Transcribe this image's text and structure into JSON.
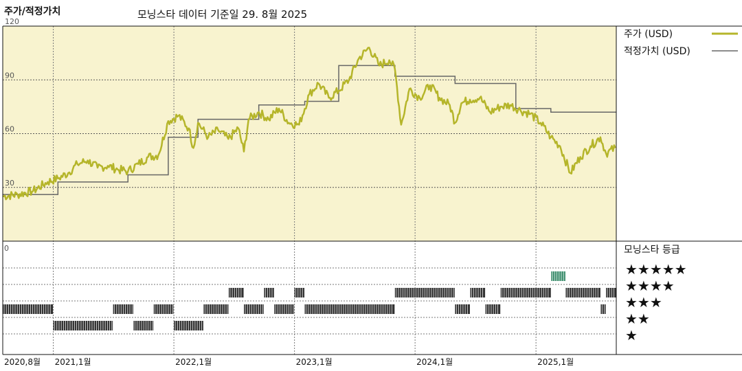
{
  "title": "주가/적정가치",
  "subtitle": "모닝스타 데이터 기준일 29. 8월 2025",
  "colors": {
    "price": "#b5b52a",
    "fair_value": "#666666",
    "plot_bg": "#f8f3cf",
    "rating_bar": "#333333",
    "rating_top": "#3f8f6f"
  },
  "chart_data": {
    "type": "line",
    "x_range": [
      "2020-08-01",
      "2025-09-01"
    ],
    "ylim": [
      0,
      120
    ],
    "yticks": [
      30,
      60,
      90,
      120
    ],
    "grid": true,
    "x_tick_labels": [
      {
        "date": "2020-08-01",
        "label": "2020,8월"
      },
      {
        "date": "2021-01-01",
        "label": "2021,1월"
      },
      {
        "date": "2022-01-01",
        "label": "2022,1월"
      },
      {
        "date": "2023-01-01",
        "label": "2023,1월"
      },
      {
        "date": "2024-01-01",
        "label": "2024,1월"
      },
      {
        "date": "2025-01-01",
        "label": "2025,1월"
      }
    ],
    "legend": [
      {
        "name": "주가 (USD)",
        "color": "#b5b52a"
      },
      {
        "name": "적정가치 (USD)",
        "color": "#666666"
      }
    ],
    "series": [
      {
        "name": "주가 (USD)",
        "points": [
          [
            "2020-08-01",
            25
          ],
          [
            "2020-09-15",
            26
          ],
          [
            "2020-11-01",
            28
          ],
          [
            "2020-12-15",
            33
          ],
          [
            "2021-01-15",
            35
          ],
          [
            "2021-02-15",
            38
          ],
          [
            "2021-03-15",
            43
          ],
          [
            "2021-04-15",
            45
          ],
          [
            "2021-05-15",
            41
          ],
          [
            "2021-06-15",
            42
          ],
          [
            "2021-07-15",
            40
          ],
          [
            "2021-08-15",
            39
          ],
          [
            "2021-09-15",
            43
          ],
          [
            "2021-10-15",
            47
          ],
          [
            "2021-11-15",
            48
          ],
          [
            "2021-12-15",
            67
          ],
          [
            "2022-01-15",
            70
          ],
          [
            "2022-02-15",
            63
          ],
          [
            "2022-03-01",
            52
          ],
          [
            "2022-03-15",
            66
          ],
          [
            "2022-04-15",
            58
          ],
          [
            "2022-05-15",
            62
          ],
          [
            "2022-06-15",
            57
          ],
          [
            "2022-07-15",
            63
          ],
          [
            "2022-08-01",
            50
          ],
          [
            "2022-08-15",
            68
          ],
          [
            "2022-09-15",
            72
          ],
          [
            "2022-10-15",
            68
          ],
          [
            "2022-11-15",
            74
          ],
          [
            "2022-12-15",
            66
          ],
          [
            "2023-01-15",
            65
          ],
          [
            "2023-02-15",
            82
          ],
          [
            "2023-03-15",
            88
          ],
          [
            "2023-04-15",
            80
          ],
          [
            "2023-05-15",
            84
          ],
          [
            "2023-06-15",
            90
          ],
          [
            "2023-07-15",
            102
          ],
          [
            "2023-08-15",
            108
          ],
          [
            "2023-09-15",
            98
          ],
          [
            "2023-10-15",
            101
          ],
          [
            "2023-11-01",
            96
          ],
          [
            "2023-11-20",
            65
          ],
          [
            "2023-12-15",
            85
          ],
          [
            "2024-01-15",
            80
          ],
          [
            "2024-02-15",
            87
          ],
          [
            "2024-03-15",
            80
          ],
          [
            "2024-04-15",
            76
          ],
          [
            "2024-05-01",
            66
          ],
          [
            "2024-05-20",
            77
          ],
          [
            "2024-06-15",
            79
          ],
          [
            "2024-07-15",
            80
          ],
          [
            "2024-08-15",
            72
          ],
          [
            "2024-09-15",
            75
          ],
          [
            "2024-10-15",
            76
          ],
          [
            "2024-11-15",
            73
          ],
          [
            "2024-12-15",
            71
          ],
          [
            "2025-01-15",
            66
          ],
          [
            "2025-02-15",
            58
          ],
          [
            "2025-03-15",
            53
          ],
          [
            "2025-04-15",
            38
          ],
          [
            "2025-05-15",
            47
          ],
          [
            "2025-06-15",
            53
          ],
          [
            "2025-07-15",
            58
          ],
          [
            "2025-08-01",
            49
          ],
          [
            "2025-08-29",
            52
          ]
        ]
      },
      {
        "name": "적정가치 (USD)",
        "steps": [
          [
            "2020-08-01",
            26
          ],
          [
            "2021-01-15",
            33
          ],
          [
            "2021-08-15",
            37
          ],
          [
            "2021-12-15",
            58
          ],
          [
            "2022-03-15",
            68
          ],
          [
            "2022-09-15",
            76
          ],
          [
            "2023-02-01",
            78
          ],
          [
            "2023-05-15",
            98
          ],
          [
            "2023-11-01",
            92
          ],
          [
            "2024-05-01",
            88
          ],
          [
            "2024-11-01",
            74
          ],
          [
            "2025-02-15",
            72
          ],
          [
            "2025-09-01",
            72
          ]
        ]
      }
    ]
  },
  "rating": {
    "title": "모닝스타 등급",
    "y_zero_label": "0",
    "stars": [
      "★★★★★",
      "★★★★",
      "★★★",
      "★★",
      "★"
    ],
    "periods": [
      {
        "start": "2020-08-01",
        "end": "2020-12-31",
        "stars": 3
      },
      {
        "start": "2021-01-01",
        "end": "2021-06-30",
        "stars": 2
      },
      {
        "start": "2021-07-01",
        "end": "2021-08-31",
        "stars": 3
      },
      {
        "start": "2021-09-01",
        "end": "2021-10-31",
        "stars": 2
      },
      {
        "start": "2021-11-01",
        "end": "2021-12-31",
        "stars": 3
      },
      {
        "start": "2022-01-01",
        "end": "2022-03-31",
        "stars": 2
      },
      {
        "start": "2022-04-01",
        "end": "2022-06-15",
        "stars": 3
      },
      {
        "start": "2022-06-16",
        "end": "2022-07-31",
        "stars": 4
      },
      {
        "start": "2022-08-01",
        "end": "2022-09-30",
        "stars": 3
      },
      {
        "start": "2022-10-01",
        "end": "2022-10-31",
        "stars": 4
      },
      {
        "start": "2022-11-01",
        "end": "2022-12-31",
        "stars": 3
      },
      {
        "start": "2023-01-01",
        "end": "2023-01-31",
        "stars": 4
      },
      {
        "start": "2023-02-01",
        "end": "2023-10-31",
        "stars": 3
      },
      {
        "start": "2023-11-01",
        "end": "2024-04-30",
        "stars": 4
      },
      {
        "start": "2024-05-01",
        "end": "2024-06-15",
        "stars": 3
      },
      {
        "start": "2024-06-16",
        "end": "2024-07-31",
        "stars": 4
      },
      {
        "start": "2024-08-01",
        "end": "2024-09-15",
        "stars": 3
      },
      {
        "start": "2024-09-16",
        "end": "2025-02-15",
        "stars": 4
      },
      {
        "start": "2025-02-16",
        "end": "2025-03-31",
        "stars": 5
      },
      {
        "start": "2025-04-01",
        "end": "2025-07-15",
        "stars": 4
      },
      {
        "start": "2025-07-16",
        "end": "2025-07-31",
        "stars": 3
      },
      {
        "start": "2025-08-01",
        "end": "2025-09-01",
        "stars": 4
      }
    ]
  }
}
